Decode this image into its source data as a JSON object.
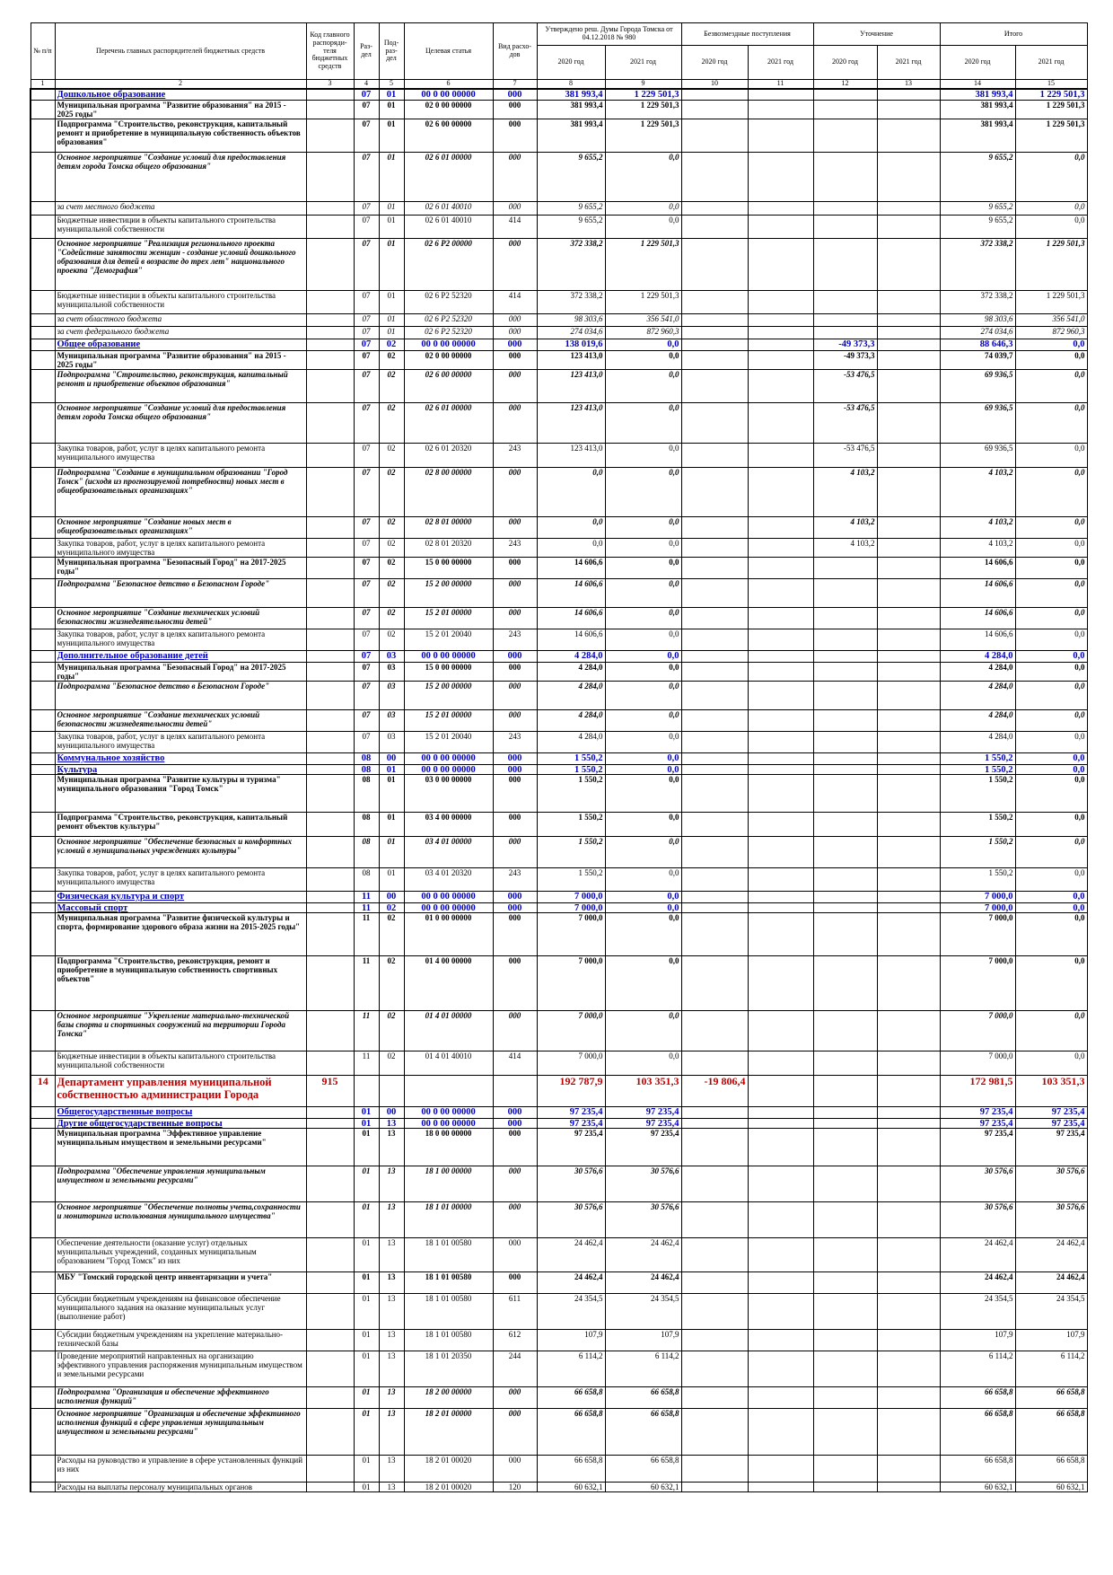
{
  "table": {
    "header": {
      "cols": [
        "№ п/п",
        "Перечень главных распорядителей бюджетных средств",
        "Код главного распоряди-теля бюджетных средств",
        "Раз-дел",
        "Под-раз-дел",
        "Целевая статья",
        "Вид расхо-дов"
      ],
      "groups": [
        "Утверждено реш. Думы Города Томска от 04.12.2018 № 980",
        "Безвозмездные поступления",
        "Уточнение",
        "Итого"
      ],
      "years": [
        "2020 год",
        "2021 год",
        "2020 год",
        "2021 год",
        "2020 год",
        "2021 год",
        "2020 год",
        "2021 год"
      ]
    },
    "numbers": [
      "1",
      "2",
      "3",
      "4",
      "5",
      "6",
      "7",
      "8",
      "9",
      "10",
      "11",
      "12",
      "13",
      "14",
      "15"
    ],
    "rows": [
      [
        null,
        "Дошкольное образование",
        null,
        "07",
        "01",
        "00 0 00 00000",
        "000",
        "381 993,4",
        "1 229 501,3",
        null,
        null,
        null,
        null,
        "381 993,4",
        "1 229 501,3"
      ],
      [
        null,
        "Муниципальная программа \"Развитие образования\" на 2015 - 2025 годы\"",
        null,
        "07",
        "01",
        "02 0 00 00000",
        "000",
        "381 993,4",
        "1 229 501,3",
        null,
        null,
        null,
        null,
        "381 993,4",
        "1 229 501,3"
      ],
      [
        null,
        "Подпрограмма \"Строительство, реконструкция, капитальный ремонт и приобретение в муниципальную собственность объектов образования\"",
        null,
        "07",
        "01",
        "02 6 00 00000",
        "000",
        "381 993,4",
        "1 229 501,3",
        null,
        null,
        null,
        null,
        "381 993,4",
        "1 229 501,3"
      ],
      [
        null,
        "Основное мероприятие \"Создание условий для предоставления детям города Томска общего образования\"",
        null,
        "07",
        "01",
        "02 6 01 00000",
        "000",
        "9 655,2",
        "0,0",
        null,
        null,
        null,
        null,
        "9 655,2",
        "0,0"
      ],
      [
        null,
        "за счет местного бюджета",
        null,
        "07",
        "01",
        "02 6 01 40010",
        "000",
        "9 655,2",
        "0,0",
        null,
        null,
        null,
        null,
        "9 655,2",
        "0,0"
      ],
      [
        null,
        "Бюджетные инвестиции в объекты капитального строительства муниципальной собственности",
        null,
        "07",
        "01",
        "02 6 01 40010",
        "414",
        "9 655,2",
        "0,0",
        null,
        null,
        null,
        null,
        "9 655,2",
        "0,0"
      ],
      [
        null,
        "Основное мероприятие \"Реализация регионального проекта \"Содействие занятости женщин - создание условий дошкольного образования для детей в возрасте до трех лет\" национального проекта \"Демография\"",
        null,
        "07",
        "01",
        "02 6 P2 00000",
        "000",
        "372 338,2",
        "1 229 501,3",
        null,
        null,
        null,
        null,
        "372 338,2",
        "1 229 501,3"
      ],
      [
        null,
        "Бюджетные инвестиции в объекты капитального строительства муниципальной собственности",
        null,
        "07",
        "01",
        "02 6 P2 52320",
        "414",
        "372 338,2",
        "1 229 501,3",
        null,
        null,
        null,
        null,
        "372 338,2",
        "1 229 501,3"
      ],
      [
        null,
        "за счет областного бюджета",
        null,
        "07",
        "01",
        "02 6 P2 52320",
        "000",
        "98 303,6",
        "356 541,0",
        null,
        null,
        null,
        null,
        "98 303,6",
        "356 541,0"
      ],
      [
        null,
        "за счет федерального бюджета",
        null,
        "07",
        "01",
        "02 6 P2 52320",
        "000",
        "274 034,6",
        "872 960,3",
        null,
        null,
        null,
        null,
        "274 034,6",
        "872 960,3"
      ],
      [
        null,
        "Общее образование",
        null,
        "07",
        "02",
        "00 0 00 00000",
        "000",
        "138 019,6",
        "0,0",
        null,
        null,
        "-49 373,3",
        null,
        "88 646,3",
        "0,0"
      ],
      [
        null,
        "Муниципальная программа \"Развитие образования\" на 2015 - 2025 годы\"",
        null,
        "07",
        "02",
        "02 0 00 00000",
        "000",
        "123 413,0",
        "0,0",
        null,
        null,
        "-49 373,3",
        null,
        "74 039,7",
        "0,0"
      ],
      [
        null,
        "Подпрограмма \"Строительство, реконструкция, капитальный ремонт и приобретение объектов образования\"",
        null,
        "07",
        "02",
        "02 6 00 00000",
        "000",
        "123 413,0",
        "0,0",
        null,
        null,
        "-53 476,5",
        null,
        "69 936,5",
        "0,0"
      ],
      [
        null,
        "Основное мероприятие \"Создание условий для предоставления детям города Томска общего образования\"",
        null,
        "07",
        "02",
        "02 6 01 00000",
        "000",
        "123 413,0",
        "0,0",
        null,
        null,
        "-53 476,5",
        null,
        "69 936,5",
        "0,0"
      ],
      [
        null,
        "Закупка товаров, работ, услуг в целях капитального ремонта муниципального имущества",
        null,
        "07",
        "02",
        "02 6 01 20320",
        "243",
        "123 413,0",
        "0,0",
        null,
        null,
        "-53 476,5",
        null,
        "69 936,5",
        "0,0"
      ],
      [
        null,
        "Подпрограмма \"Создание в муниципальном образовании \"Город Томск\" (исходя из прогнозируемой потребности) новых мест в общеобразовательных организациях\"",
        null,
        "07",
        "02",
        "02 8 00 00000",
        "000",
        "0,0",
        "0,0",
        null,
        null,
        "4 103,2",
        null,
        "4 103,2",
        "0,0"
      ],
      [
        null,
        "Основное мероприятие \"Создание новых мест в общеобразовательных организациях\"",
        null,
        "07",
        "02",
        "02 8 01 00000",
        "000",
        "0,0",
        "0,0",
        null,
        null,
        "4 103,2",
        null,
        "4 103,2",
        "0,0"
      ],
      [
        null,
        "Закупка товаров, работ, услуг в целях капитального ремонта муниципального имущества",
        null,
        "07",
        "02",
        "02 8 01 20320",
        "243",
        "0,0",
        "0,0",
        null,
        null,
        "4 103,2",
        null,
        "4 103,2",
        "0,0"
      ],
      [
        null,
        "Муниципальная программа \"Безопасный Город\" на 2017-2025 годы\"",
        null,
        "07",
        "02",
        "15 0 00 00000",
        "000",
        "14 606,6",
        "0,0",
        null,
        null,
        null,
        null,
        "14 606,6",
        "0,0"
      ],
      [
        null,
        "Подпрограмма \"Безопасное детство в Безопасном Городе\"",
        null,
        "07",
        "02",
        "15 2 00 00000",
        "000",
        "14 606,6",
        "0,0",
        null,
        null,
        null,
        null,
        "14 606,6",
        "0,0"
      ],
      [
        null,
        "Основное мероприятие \"Создание технических условий безопасности жизнедеятельности детей\"",
        null,
        "07",
        "02",
        "15 2 01 00000",
        "000",
        "14 606,6",
        "0,0",
        null,
        null,
        null,
        null,
        "14 606,6",
        "0,0"
      ],
      [
        null,
        "Закупка товаров, работ, услуг в целях капитального ремонта муниципального имущества",
        null,
        "07",
        "02",
        "15 2 01 20040",
        "243",
        "14 606,6",
        "0,0",
        null,
        null,
        null,
        null,
        "14 606,6",
        "0,0"
      ],
      [
        null,
        "Дополнительное образование детей",
        null,
        "07",
        "03",
        "00 0 00 00000",
        "000",
        "4 284,0",
        "0,0",
        null,
        null,
        null,
        null,
        "4 284,0",
        "0,0"
      ],
      [
        null,
        "Муниципальная программа \"Безопасный Город\" на 2017-2025 годы\"",
        null,
        "07",
        "03",
        "15 0 00 00000",
        "000",
        "4 284,0",
        "0,0",
        null,
        null,
        null,
        null,
        "4 284,0",
        "0,0"
      ],
      [
        null,
        "Подпрограмма \"Безопасное детство в Безопасном Городе\"",
        null,
        "07",
        "03",
        "15 2 00 00000",
        "000",
        "4 284,0",
        "0,0",
        null,
        null,
        null,
        null,
        "4 284,0",
        "0,0"
      ],
      [
        null,
        "Основное мероприятие \"Создание технических условий безопасности жизнедеятельности детей\"",
        null,
        "07",
        "03",
        "15 2 01 00000",
        "000",
        "4 284,0",
        "0,0",
        null,
        null,
        null,
        null,
        "4 284,0",
        "0,0"
      ],
      [
        null,
        "Закупка товаров, работ, услуг в целях капитального ремонта муниципального имущества",
        null,
        "07",
        "03",
        "15 2 01 20040",
        "243",
        "4 284,0",
        "0,0",
        null,
        null,
        null,
        null,
        "4 284,0",
        "0,0"
      ],
      [
        null,
        "Коммунальное хозяйство",
        null,
        "08",
        "00",
        "00 0 00 00000",
        "000",
        "1 550,2",
        "0,0",
        null,
        null,
        null,
        null,
        "1 550,2",
        "0,0"
      ],
      [
        null,
        "Культура",
        null,
        "08",
        "01",
        "00 0 00 00000",
        "000",
        "1 550,2",
        "0,0",
        null,
        null,
        null,
        null,
        "1 550,2",
        "0,0"
      ],
      [
        null,
        "Муниципальная программа \"Развитие культуры и туризма\" муниципального образования \"Город Томск\"",
        null,
        "08",
        "01",
        "03 0 00 00000",
        "000",
        "1 550,2",
        "0,0",
        null,
        null,
        null,
        null,
        "1 550,2",
        "0,0"
      ],
      [
        null,
        "Подпрограмма \"Строительство, реконструкция, капитальный ремонт объектов культуры\"",
        null,
        "08",
        "01",
        "03 4 00 00000",
        "000",
        "1 550,2",
        "0,0",
        null,
        null,
        null,
        null,
        "1 550,2",
        "0,0"
      ],
      [
        null,
        "Основное мероприятие \"Обеспечение безопасных и комфортных условий в муниципальных учреждениях культуры\"",
        null,
        "08",
        "01",
        "03 4 01 00000",
        "000",
        "1 550,2",
        "0,0",
        null,
        null,
        null,
        null,
        "1 550,2",
        "0,0"
      ],
      [
        null,
        "Закупка товаров, работ, услуг в целях капитального ремонта муниципального имущества",
        null,
        "08",
        "01",
        "03 4 01 20320",
        "243",
        "1 550,2",
        "0,0",
        null,
        null,
        null,
        null,
        "1 550,2",
        "0,0"
      ],
      [
        null,
        "Физическая культура и спорт",
        null,
        "11",
        "00",
        "00 0 00 00000",
        "000",
        "7 000,0",
        "0,0",
        null,
        null,
        null,
        null,
        "7 000,0",
        "0,0"
      ],
      [
        null,
        "Массовый спорт",
        null,
        "11",
        "02",
        "00 0 00 00000",
        "000",
        "7 000,0",
        "0,0",
        null,
        null,
        null,
        null,
        "7 000,0",
        "0,0"
      ],
      [
        null,
        "Муниципальная программа \"Развитие физической культуры и спорта, формирование здорового образа жизни на 2015-2025 годы\"",
        null,
        "11",
        "02",
        "01 0 00 00000",
        "000",
        "7 000,0",
        "0,0",
        null,
        null,
        null,
        null,
        "7 000,0",
        "0,0"
      ],
      [
        null,
        "Подпрограмма \"Строительство, реконструкция, ремонт и приобретение в муниципальную собственность спортивных объектов\"",
        null,
        "11",
        "02",
        "01 4 00 00000",
        "000",
        "7 000,0",
        "0,0",
        null,
        null,
        null,
        null,
        "7 000,0",
        "0,0"
      ],
      [
        null,
        "Основное мероприятие \"Укрепление материально-технической базы спорта и спортивных сооружений на территории Города Томска\"",
        null,
        "11",
        "02",
        "01 4 01 00000",
        "000",
        "7 000,0",
        "0,0",
        null,
        null,
        null,
        null,
        "7 000,0",
        "0,0"
      ],
      [
        null,
        "Бюджетные инвестиции в объекты капитального строительства муниципальной собственности",
        null,
        "11",
        "02",
        "01 4 01 40010",
        "414",
        "7 000,0",
        "0,0",
        null,
        null,
        null,
        null,
        "7 000,0",
        "0,0"
      ],
      [
        "14",
        "Департамент управления муниципальной собственностью администрации Города",
        "915",
        null,
        null,
        null,
        null,
        "192 787,9",
        "103 351,3",
        "-19 806,4",
        null,
        null,
        null,
        "172 981,5",
        "103 351,3"
      ],
      [
        null,
        "Общегосударственные вопросы",
        null,
        "01",
        "00",
        "00 0 00 00000",
        "000",
        "97 235,4",
        "97 235,4",
        null,
        null,
        null,
        null,
        "97 235,4",
        "97 235,4"
      ],
      [
        null,
        "Другие общегосударственные вопросы",
        null,
        "01",
        "13",
        "00 0 00 00000",
        "000",
        "97 235,4",
        "97 235,4",
        null,
        null,
        null,
        null,
        "97 235,4",
        "97 235,4"
      ],
      [
        null,
        "Муниципальная программа \"Эффективное управление муниципальным имуществом и земельными ресурсами\"",
        null,
        "01",
        "13",
        "18 0 00 00000",
        "000",
        "97 235,4",
        "97 235,4",
        null,
        null,
        null,
        null,
        "97 235,4",
        "97 235,4"
      ],
      [
        null,
        "Подпрограмма \"Обеспечение управления муниципальным имуществом и земельными ресурсами\"",
        null,
        "01",
        "13",
        "18 1 00 00000",
        "000",
        "30 576,6",
        "30 576,6",
        null,
        null,
        null,
        null,
        "30 576,6",
        "30 576,6"
      ],
      [
        null,
        "Основное мероприятие \"Обеспечение полноты учета,сохранности и мониторинга использования муниципального имущества\"",
        null,
        "01",
        "13",
        "18 1 01 00000",
        "000",
        "30 576,6",
        "30 576,6",
        null,
        null,
        null,
        null,
        "30 576,6",
        "30 576,6"
      ],
      [
        null,
        "Обеспечение деятельности (оказание услуг) отдельных муниципальных учреждений, созданных муниципальным образованием \"Город Томск\" из них",
        null,
        "01",
        "13",
        "18 1 01 00580",
        "000",
        "24 462,4",
        "24 462,4",
        null,
        null,
        null,
        null,
        "24 462,4",
        "24 462,4"
      ],
      [
        null,
        "МБУ \"Томский городской центр инвентаризации и учета\"",
        null,
        "01",
        "13",
        "18 1 01 00580",
        "000",
        "24 462,4",
        "24 462,4",
        null,
        null,
        null,
        null,
        "24 462,4",
        "24 462,4"
      ],
      [
        null,
        "Субсидии бюджетным учреждениям на финансовое обеспечение муниципального задания на оказание муниципальных услуг (выполнение работ)",
        null,
        "01",
        "13",
        "18 1 01 00580",
        "611",
        "24 354,5",
        "24 354,5",
        null,
        null,
        null,
        null,
        "24 354,5",
        "24 354,5"
      ],
      [
        null,
        "Субсидии бюджетным учреждениям на укрепление материально-технической базы",
        null,
        "01",
        "13",
        "18 1 01 00580",
        "612",
        "107,9",
        "107,9",
        null,
        null,
        null,
        null,
        "107,9",
        "107,9"
      ],
      [
        null,
        "Проведение мероприятий направленных на организацию эффективного управления распоряжения муниципальным имуществом и земельными ресурсами",
        null,
        "01",
        "13",
        "18 1 01 20350",
        "244",
        "6 114,2",
        "6 114,2",
        null,
        null,
        null,
        null,
        "6 114,2",
        "6 114,2"
      ],
      [
        null,
        "Подпрограмма \"Организация и обеспечение эффективного исполнения функций\"",
        null,
        "01",
        "13",
        "18 2 00 00000",
        "000",
        "66 658,8",
        "66 658,8",
        null,
        null,
        null,
        null,
        "66 658,8",
        "66 658,8"
      ],
      [
        null,
        "Основное мероприятие \"Организация и обеспечение эффективного исполнения функций в сфере управления муниципальным имуществом и земельными ресурсами\"",
        null,
        "01",
        "13",
        "18 2 01 00000",
        "000",
        "66 658,8",
        "66 658,8",
        null,
        null,
        null,
        null,
        "66 658,8",
        "66 658,8"
      ],
      [
        null,
        "Расходы на руководство и управление в сфере установленных функций из них",
        null,
        "01",
        "13",
        "18 2 01 00020",
        "000",
        "66 658,8",
        "66 658,8",
        null,
        null,
        null,
        null,
        "66 658,8",
        "66 658,8"
      ],
      [
        null,
        "Расходы на выплаты персоналу муниципальных органов",
        null,
        "01",
        "13",
        "18 2 01 00020",
        "120",
        "60 632,1",
        "60 632,1",
        null,
        null,
        null,
        null,
        "60 632,1",
        "60 632,1"
      ]
    ]
  }
}
